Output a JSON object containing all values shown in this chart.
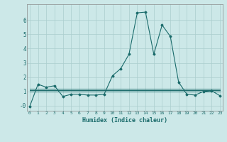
{
  "xlabel": "Humidex (Indice chaleur)",
  "bg_color": "#cce8e8",
  "grid_color": "#aacece",
  "line_color": "#1a6b6b",
  "marker_color": "#1a6b6b",
  "x_values": [
    0,
    1,
    2,
    3,
    4,
    5,
    6,
    7,
    8,
    9,
    10,
    11,
    12,
    13,
    14,
    15,
    16,
    17,
    18,
    19,
    20,
    21,
    22,
    23
  ],
  "y_main": [
    -0.05,
    1.5,
    1.3,
    1.4,
    0.65,
    0.8,
    0.8,
    0.75,
    0.75,
    0.8,
    2.1,
    2.6,
    3.6,
    6.5,
    6.55,
    3.6,
    5.65,
    4.85,
    1.65,
    0.8,
    0.75,
    1.0,
    1.05,
    0.7
  ],
  "y_flat1": [
    1.0,
    1.0,
    1.0,
    1.0,
    1.0,
    1.0,
    1.0,
    1.0,
    1.0,
    1.0,
    1.0,
    1.0,
    1.0,
    1.0,
    1.0,
    1.0,
    1.0,
    1.0,
    1.0,
    1.0,
    1.0,
    1.0,
    1.0,
    1.0
  ],
  "y_flat2": [
    1.1,
    1.1,
    1.1,
    1.1,
    1.1,
    1.1,
    1.1,
    1.1,
    1.1,
    1.1,
    1.1,
    1.1,
    1.1,
    1.1,
    1.1,
    1.1,
    1.1,
    1.1,
    1.1,
    1.1,
    1.1,
    1.1,
    1.1,
    1.1
  ],
  "y_flat3": [
    1.2,
    1.2,
    1.2,
    1.2,
    1.2,
    1.2,
    1.2,
    1.2,
    1.2,
    1.2,
    1.2,
    1.2,
    1.2,
    1.2,
    1.2,
    1.2,
    1.2,
    1.2,
    1.2,
    1.2,
    1.2,
    1.2,
    1.2,
    1.2
  ],
  "xlim": [
    -0.3,
    23.3
  ],
  "ylim": [
    -0.35,
    7.1
  ],
  "yticks": [
    0,
    1,
    2,
    3,
    4,
    5,
    6
  ],
  "ytick_labels": [
    "-0",
    "1",
    "2",
    "3",
    "4",
    "5",
    "6"
  ],
  "xticks": [
    0,
    1,
    2,
    3,
    4,
    5,
    6,
    7,
    8,
    9,
    10,
    11,
    12,
    13,
    14,
    15,
    16,
    17,
    18,
    19,
    20,
    21,
    22,
    23
  ]
}
